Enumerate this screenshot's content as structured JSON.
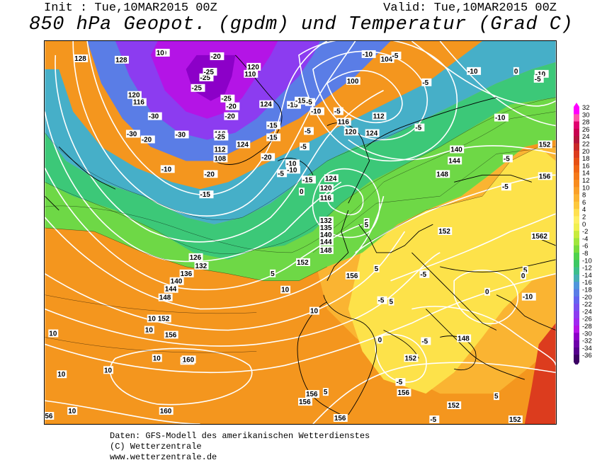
{
  "header": {
    "init": "Init : Tue,10MAR2015 00Z",
    "valid": "Valid: Tue,10MAR2015 00Z",
    "title": "850 hPa Geopot. (gpdm) und Temperatur (Grad C)"
  },
  "footer": {
    "line1": "Daten: GFS-Modell des amerikanischen Wetterdienstes",
    "line2": "(C) Wetterzentrale",
    "line3": "www.wetterzentrale.de"
  },
  "colorbar": {
    "labels": [
      "32",
      "30",
      "28",
      "26",
      "24",
      "22",
      "20",
      "18",
      "16",
      "14",
      "12",
      "10",
      "8",
      "6",
      "4",
      "2",
      "0",
      "-2",
      "-4",
      "-6",
      "-8",
      "-10",
      "-12",
      "-14",
      "-16",
      "-18",
      "-20",
      "-22",
      "-24",
      "-26",
      "-28",
      "-30",
      "-32",
      "-34",
      "-36"
    ],
    "colors": [
      "#ff00ff",
      "#ff55aa",
      "#e00070",
      "#c80050",
      "#b4143c",
      "#c82828",
      "#dc3c1e",
      "#e65014",
      "#f06414",
      "#f57819",
      "#f88c1e",
      "#faa028",
      "#fcb432",
      "#fdc83c",
      "#ffe050",
      "#fff064",
      "#f0f050",
      "#c8eb3c",
      "#a0e63c",
      "#78dc3c",
      "#50d24b",
      "#3cc864",
      "#3cbe8c",
      "#46afb4",
      "#5096dc",
      "#5a7de6",
      "#6464f0",
      "#7850f0",
      "#8c3cf0",
      "#a028f0",
      "#b414e6",
      "#8c00c8",
      "#6e00aa",
      "#55008c",
      "#3c0064"
    ]
  },
  "map": {
    "geopotential_labels": [
      "128",
      "120",
      "116",
      "118",
      "108",
      "112",
      "124",
      "126",
      "132",
      "136",
      "140",
      "144",
      "148",
      "152",
      "156",
      "160",
      "100",
      "104",
      "112",
      "116",
      "120",
      "124",
      "124",
      "120",
      "116",
      "132",
      "135",
      "140",
      "144",
      "148",
      "152",
      "156",
      "140",
      "144",
      "148",
      "156",
      "152",
      "1562",
      "152",
      "148",
      "152",
      "156",
      "160",
      "160",
      "156",
      "156",
      "156",
      "152",
      "152",
      "56",
      "124",
      "128",
      "110",
      "120"
    ],
    "temperature_labels": [
      "-10",
      "-20",
      "-25",
      "-25",
      "-25",
      "-30",
      "-25",
      "-20",
      "-20",
      "-15",
      "-30",
      "-20",
      "-30",
      "-25",
      "-10",
      "-20",
      "-15",
      "-15",
      "-15",
      "-10",
      "-5",
      "-5",
      "-10",
      "-20",
      "-15",
      "-10",
      "-15",
      "-5",
      "-5",
      "-5",
      "-10",
      "-5",
      "0",
      "-5",
      "-10",
      "-5",
      "-10",
      "-10",
      "-5",
      "-5",
      "-5",
      "0",
      "5",
      "5",
      "5",
      "5",
      "10",
      "10",
      "10",
      "10",
      "10",
      "10",
      "10",
      "10",
      "10",
      "5",
      "5",
      "-5",
      "-5",
      "-5",
      "-5",
      "5",
      "5",
      "0",
      "-5",
      "0",
      "-10",
      "0",
      "10"
    ]
  }
}
